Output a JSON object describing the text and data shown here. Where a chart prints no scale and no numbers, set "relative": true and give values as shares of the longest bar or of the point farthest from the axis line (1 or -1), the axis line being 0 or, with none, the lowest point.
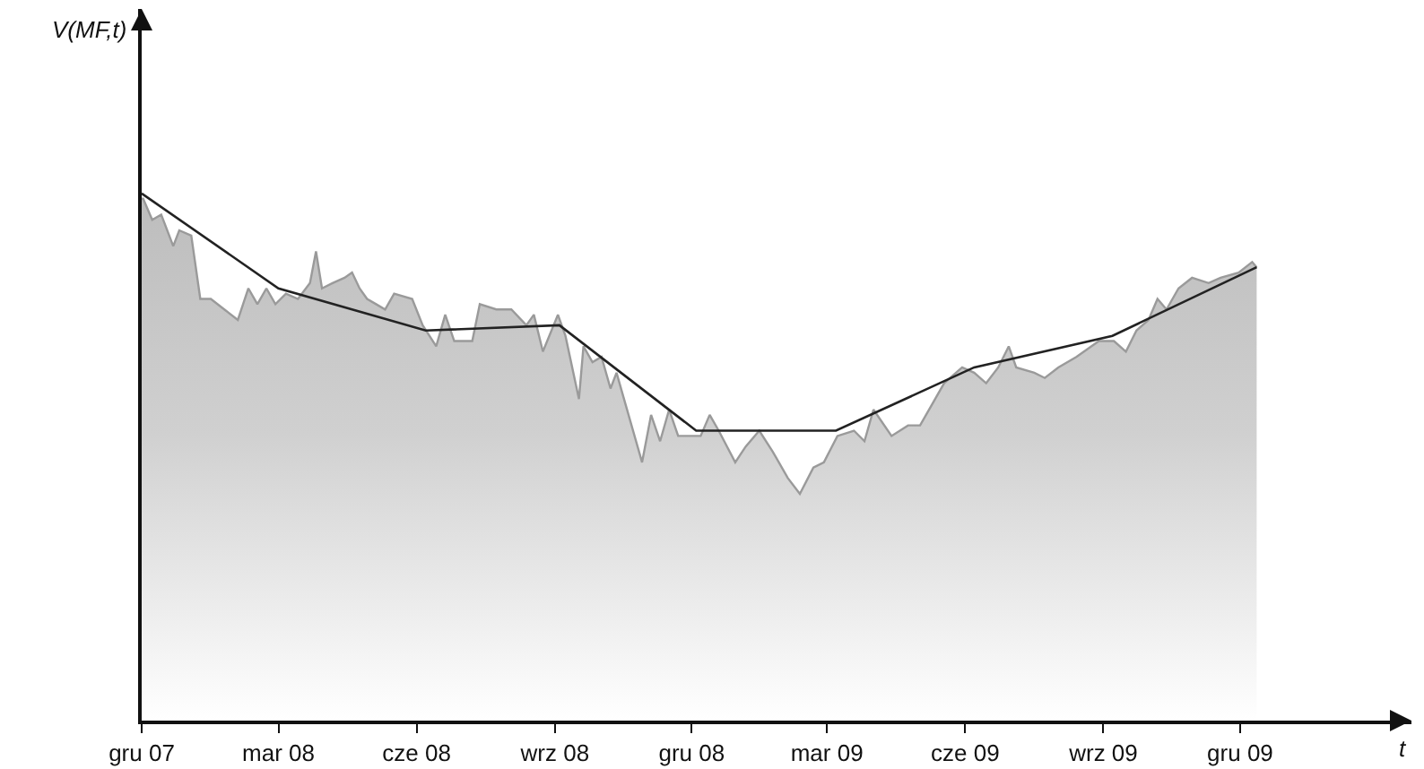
{
  "chart_data": {
    "type": "area",
    "relative": true,
    "xlabel": "t",
    "annotations": [
      "V(MF,t)"
    ],
    "xlim": [
      "2007-12-01",
      "2010-03-25"
    ],
    "xticks": [
      {
        "value": "2007-12-01",
        "label": "gru 07"
      },
      {
        "value": "2008-03-01",
        "label": "mar 08"
      },
      {
        "value": "2008-06-01",
        "label": "cze 08"
      },
      {
        "value": "2008-09-01",
        "label": "wrz 08"
      },
      {
        "value": "2008-12-01",
        "label": "gru 08"
      },
      {
        "value": "2009-03-01",
        "label": "mar 09"
      },
      {
        "value": "2009-06-01",
        "label": "cze 09"
      },
      {
        "value": "2009-09-01",
        "label": "wrz 09"
      },
      {
        "value": "2009-12-01",
        "label": "gru 09"
      }
    ],
    "grid": false,
    "marker": "none",
    "series": [
      {
        "color": "#9a9a9a",
        "x": [
          "2007-12-01",
          "2007-12-02",
          "2007-12-08",
          "2007-12-14",
          "2007-12-22",
          "2007-12-26",
          "2008-01-03",
          "2008-01-09",
          "2008-01-16",
          "2008-01-25",
          "2008-02-03",
          "2008-02-10",
          "2008-02-16",
          "2008-02-22",
          "2008-02-28",
          "2008-03-06",
          "2008-03-14",
          "2008-03-22",
          "2008-03-26",
          "2008-03-30",
          "2008-04-06",
          "2008-04-14",
          "2008-04-19",
          "2008-04-24",
          "2008-04-29",
          "2008-05-05",
          "2008-05-11",
          "2008-05-17",
          "2008-05-29",
          "2008-06-05",
          "2008-06-14",
          "2008-06-20",
          "2008-06-26",
          "2008-07-08",
          "2008-07-13",
          "2008-07-24",
          "2008-08-03",
          "2008-08-13",
          "2008-08-18",
          "2008-08-24",
          "2008-09-03",
          "2008-09-08",
          "2008-09-17",
          "2008-09-20",
          "2008-09-26",
          "2008-10-02",
          "2008-10-08",
          "2008-10-12",
          "2008-10-18",
          "2008-10-29",
          "2008-11-04",
          "2008-11-10",
          "2008-11-16",
          "2008-11-22",
          "2008-12-07",
          "2008-12-13",
          "2008-12-19",
          "2008-12-30",
          "2009-01-06",
          "2009-01-15",
          "2009-01-24",
          "2009-02-03",
          "2009-02-11",
          "2009-02-20",
          "2009-02-27",
          "2009-03-08",
          "2009-03-19",
          "2009-03-26",
          "2009-04-01",
          "2009-04-13",
          "2009-04-24",
          "2009-05-02",
          "2009-05-10",
          "2009-05-18",
          "2009-05-30",
          "2009-06-07",
          "2009-06-15",
          "2009-06-23",
          "2009-06-30",
          "2009-07-05",
          "2009-07-17",
          "2009-07-24",
          "2009-08-02",
          "2009-08-14",
          "2009-08-29",
          "2009-09-08",
          "2009-09-16",
          "2009-09-23",
          "2009-10-01",
          "2009-10-07",
          "2009-10-13",
          "2009-10-21",
          "2009-10-30",
          "2009-11-10",
          "2009-11-18",
          "2009-11-30",
          "2009-12-09",
          "2009-12-12"
        ],
        "values": [
          0.99,
          0.99,
          0.95,
          0.96,
          0.9,
          0.93,
          0.92,
          0.8,
          0.8,
          0.78,
          0.76,
          0.82,
          0.79,
          0.82,
          0.79,
          0.81,
          0.8,
          0.83,
          0.89,
          0.82,
          0.83,
          0.84,
          0.85,
          0.82,
          0.8,
          0.79,
          0.78,
          0.81,
          0.8,
          0.75,
          0.71,
          0.77,
          0.72,
          0.72,
          0.79,
          0.78,
          0.78,
          0.75,
          0.77,
          0.7,
          0.77,
          0.73,
          0.61,
          0.71,
          0.68,
          0.69,
          0.63,
          0.66,
          0.6,
          0.49,
          0.58,
          0.53,
          0.59,
          0.54,
          0.54,
          0.58,
          0.55,
          0.49,
          0.52,
          0.55,
          0.51,
          0.46,
          0.43,
          0.48,
          0.49,
          0.54,
          0.55,
          0.53,
          0.59,
          0.54,
          0.56,
          0.56,
          0.6,
          0.64,
          0.67,
          0.66,
          0.64,
          0.67,
          0.71,
          0.67,
          0.66,
          0.65,
          0.67,
          0.69,
          0.72,
          0.72,
          0.7,
          0.74,
          0.76,
          0.8,
          0.78,
          0.82,
          0.84,
          0.83,
          0.84,
          0.85,
          0.87,
          0.86
        ]
      },
      {
        "type": "line",
        "color": "#222222",
        "line_style": "solid",
        "x": [
          "2007-12-01",
          "2008-03-01",
          "2008-06-07",
          "2008-09-04",
          "2008-12-04",
          "2009-03-07",
          "2009-06-07",
          "2009-09-07",
          "2009-12-12"
        ],
        "values": [
          1,
          0.82,
          0.74,
          0.75,
          0.55,
          0.55,
          0.67,
          0.73,
          0.86
        ]
      }
    ]
  }
}
